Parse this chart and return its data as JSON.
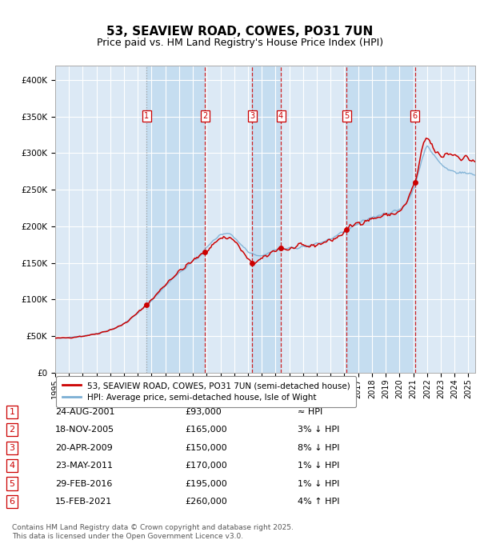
{
  "title": "53, SEAVIEW ROAD, COWES, PO31 7UN",
  "subtitle": "Price paid vs. HM Land Registry's House Price Index (HPI)",
  "background_color": "#ffffff",
  "plot_bg_color": "#dce9f5",
  "grid_color": "#ffffff",
  "ylabel_ticks": [
    "£0",
    "£50K",
    "£100K",
    "£150K",
    "£200K",
    "£250K",
    "£300K",
    "£350K",
    "£400K"
  ],
  "ytick_values": [
    0,
    50000,
    100000,
    150000,
    200000,
    250000,
    300000,
    350000,
    400000
  ],
  "ylim": [
    0,
    420000
  ],
  "xlim_start": 1995.0,
  "xlim_end": 2025.5,
  "xtick_years": [
    1995,
    1996,
    1997,
    1998,
    1999,
    2000,
    2001,
    2002,
    2003,
    2004,
    2005,
    2006,
    2007,
    2008,
    2009,
    2010,
    2011,
    2012,
    2013,
    2014,
    2015,
    2016,
    2017,
    2018,
    2019,
    2020,
    2021,
    2022,
    2023,
    2024,
    2025
  ],
  "sale_dates_decimal": [
    2001.647,
    2005.883,
    2009.305,
    2011.389,
    2016.163,
    2021.121
  ],
  "sale_prices": [
    93000,
    165000,
    150000,
    170000,
    195000,
    260000
  ],
  "sale_labels": [
    "1",
    "2",
    "3",
    "4",
    "5",
    "6"
  ],
  "sale_color": "#cc0000",
  "hpi_color": "#7bafd4",
  "legend_label_red": "53, SEAVIEW ROAD, COWES, PO31 7UN (semi-detached house)",
  "legend_label_blue": "HPI: Average price, semi-detached house, Isle of Wight",
  "table_rows": [
    {
      "num": "1",
      "date": "24-AUG-2001",
      "price": "£93,000",
      "rel": "≈ HPI"
    },
    {
      "num": "2",
      "date": "18-NOV-2005",
      "price": "£165,000",
      "rel": "3% ↓ HPI"
    },
    {
      "num": "3",
      "date": "20-APR-2009",
      "price": "£150,000",
      "rel": "8% ↓ HPI"
    },
    {
      "num": "4",
      "date": "23-MAY-2011",
      "price": "£170,000",
      "rel": "1% ↓ HPI"
    },
    {
      "num": "5",
      "date": "29-FEB-2016",
      "price": "£195,000",
      "rel": "1% ↓ HPI"
    },
    {
      "num": "6",
      "date": "15-FEB-2021",
      "price": "£260,000",
      "rel": "4% ↑ HPI"
    }
  ],
  "footer": "Contains HM Land Registry data © Crown copyright and database right 2025.\nThis data is licensed under the Open Government Licence v3.0.",
  "vline_color_dashed": "#cc0000",
  "vline_color_dotted": "#999999"
}
